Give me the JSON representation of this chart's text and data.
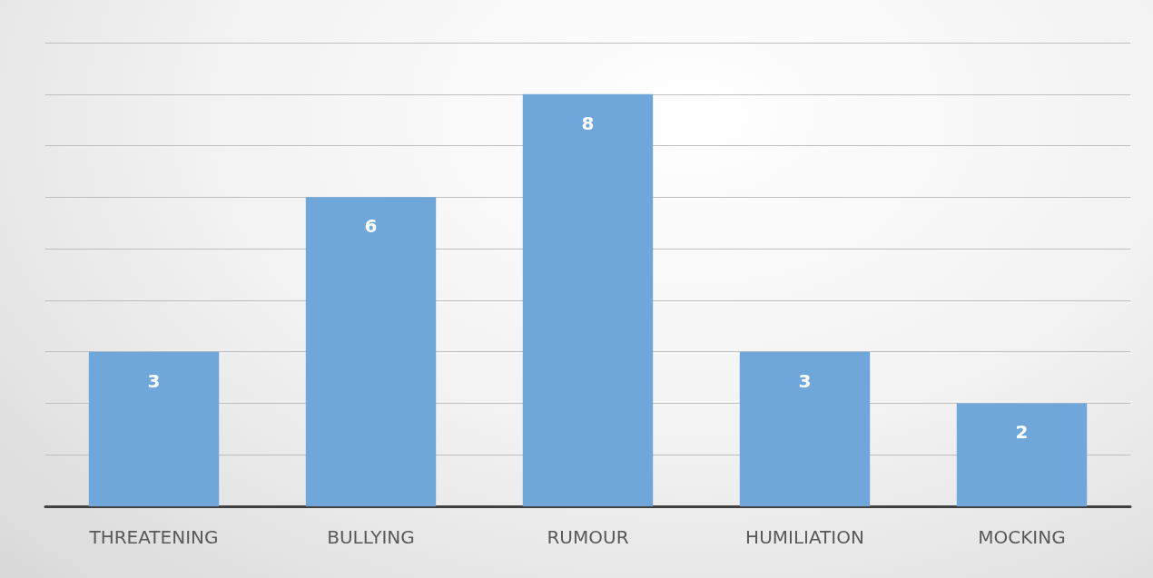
{
  "chart_data": {
    "type": "bar",
    "categories": [
      "THREATENING",
      "BULLYING",
      "RUMOUR",
      "HUMILIATION",
      "MOCKING"
    ],
    "values": [
      3,
      6,
      8,
      3,
      2
    ],
    "color": "#6fa7da",
    "ylim": [
      0,
      9
    ],
    "yticks": [
      0,
      1,
      2,
      3,
      4,
      5,
      6,
      7,
      8,
      9
    ],
    "tick_labels": "x",
    "grid": "y",
    "data_labels": true
  }
}
